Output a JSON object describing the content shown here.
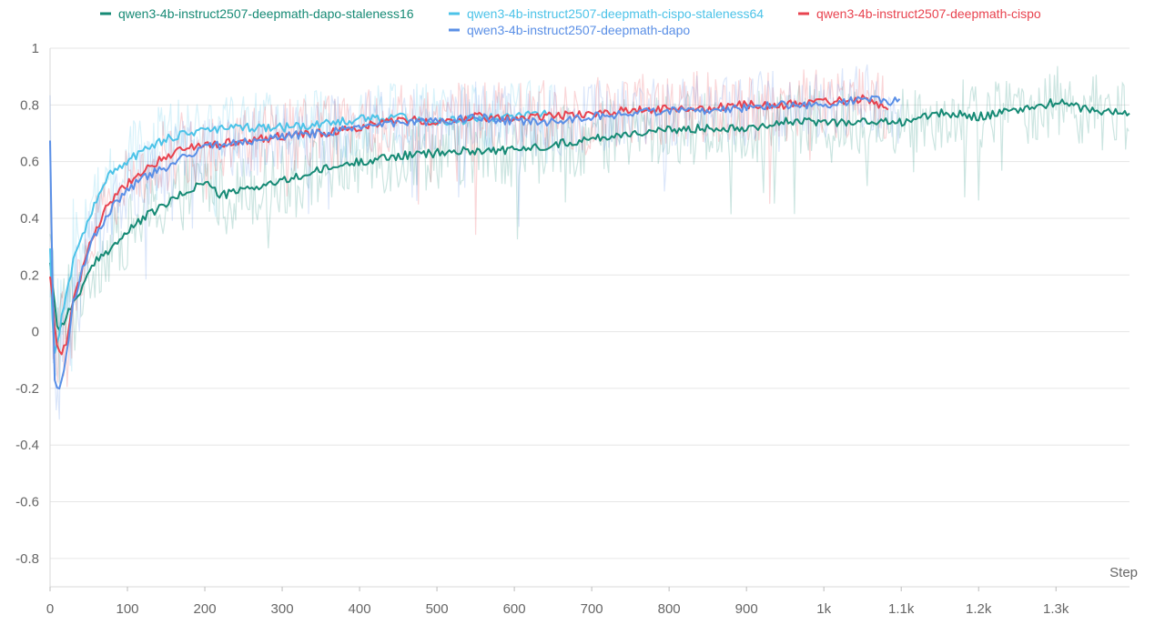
{
  "chart_data": {
    "type": "line",
    "title": "",
    "xlabel": "Step",
    "ylabel": "",
    "xlim": [
      0,
      1395
    ],
    "ylim": [
      -0.9,
      1.0
    ],
    "grid": true,
    "legend_position": "top",
    "x_ticks": [
      0,
      100,
      200,
      300,
      400,
      500,
      600,
      700,
      800,
      900,
      1000,
      1100,
      1200,
      1300
    ],
    "x_tick_labels": [
      "0",
      "100",
      "200",
      "300",
      "400",
      "500",
      "600",
      "700",
      "800",
      "900",
      "1k",
      "1.1k",
      "1.2k",
      "1.3k"
    ],
    "y_ticks": [
      -0.8,
      -0.6,
      -0.4,
      -0.2,
      0,
      0.2,
      0.4,
      0.6,
      0.8,
      1
    ],
    "y_tick_labels": [
      "-0.8",
      "-0.6",
      "-0.4",
      "-0.2",
      "0",
      "0.2",
      "0.4",
      "0.6",
      "0.8",
      "1"
    ],
    "series": [
      {
        "name": "qwen3-4b-instruct2507-deepmath-dapo-staleness16",
        "color": "#168a75",
        "x": [
          0,
          10,
          20,
          40,
          60,
          80,
          100,
          120,
          150,
          180,
          200,
          220,
          250,
          280,
          300,
          350,
          400,
          450,
          500,
          550,
          600,
          650,
          700,
          750,
          800,
          850,
          900,
          950,
          1000,
          1050,
          1100,
          1150,
          1200,
          1250,
          1300,
          1350,
          1395
        ],
        "values": [
          0.25,
          0.0,
          0.05,
          0.15,
          0.25,
          0.3,
          0.35,
          0.4,
          0.45,
          0.5,
          0.53,
          0.48,
          0.5,
          0.52,
          0.53,
          0.57,
          0.6,
          0.62,
          0.63,
          0.64,
          0.64,
          0.66,
          0.68,
          0.7,
          0.71,
          0.72,
          0.72,
          0.74,
          0.74,
          0.74,
          0.74,
          0.77,
          0.76,
          0.78,
          0.81,
          0.78,
          0.77
        ]
      },
      {
        "name": "qwen3-4b-instruct2507-deepmath-cispo-staleness64",
        "color": "#4cc3e8",
        "x": [
          0,
          5,
          15,
          30,
          50,
          75,
          100,
          125,
          150,
          175,
          200,
          250,
          300,
          350,
          400,
          450,
          500,
          550,
          600,
          650
        ],
        "values": [
          0.3,
          -0.1,
          0.05,
          0.25,
          0.4,
          0.55,
          0.6,
          0.65,
          0.68,
          0.7,
          0.71,
          0.72,
          0.72,
          0.73,
          0.75,
          0.76,
          0.74,
          0.75,
          0.76,
          0.77
        ]
      },
      {
        "name": "qwen3-4b-instruct2507-deepmath-cispo",
        "color": "#e8434f",
        "x": [
          0,
          10,
          20,
          30,
          50,
          75,
          100,
          125,
          150,
          175,
          200,
          250,
          300,
          350,
          400,
          450,
          500,
          550,
          600,
          650,
          700,
          750,
          800,
          850,
          900,
          950,
          1000,
          1050,
          1085
        ],
        "values": [
          0.2,
          -0.08,
          -0.05,
          0.1,
          0.3,
          0.45,
          0.52,
          0.58,
          0.62,
          0.65,
          0.66,
          0.67,
          0.69,
          0.7,
          0.72,
          0.75,
          0.74,
          0.76,
          0.75,
          0.76,
          0.77,
          0.78,
          0.79,
          0.79,
          0.8,
          0.8,
          0.81,
          0.82,
          0.79
        ]
      },
      {
        "name": "qwen3-4b-instruct2507-deepmath-dapo",
        "color": "#5a8fe6",
        "x": [
          0,
          5,
          10,
          20,
          30,
          50,
          75,
          100,
          125,
          150,
          175,
          200,
          250,
          300,
          350,
          400,
          450,
          500,
          550,
          600,
          650,
          700,
          750,
          800,
          850,
          900,
          950,
          1000,
          1050,
          1100
        ],
        "values": [
          0.68,
          -0.15,
          -0.22,
          -0.1,
          0.1,
          0.3,
          0.42,
          0.5,
          0.55,
          0.58,
          0.62,
          0.65,
          0.67,
          0.69,
          0.7,
          0.72,
          0.74,
          0.74,
          0.76,
          0.74,
          0.74,
          0.76,
          0.77,
          0.78,
          0.78,
          0.79,
          0.8,
          0.8,
          0.82,
          0.81
        ]
      }
    ]
  }
}
